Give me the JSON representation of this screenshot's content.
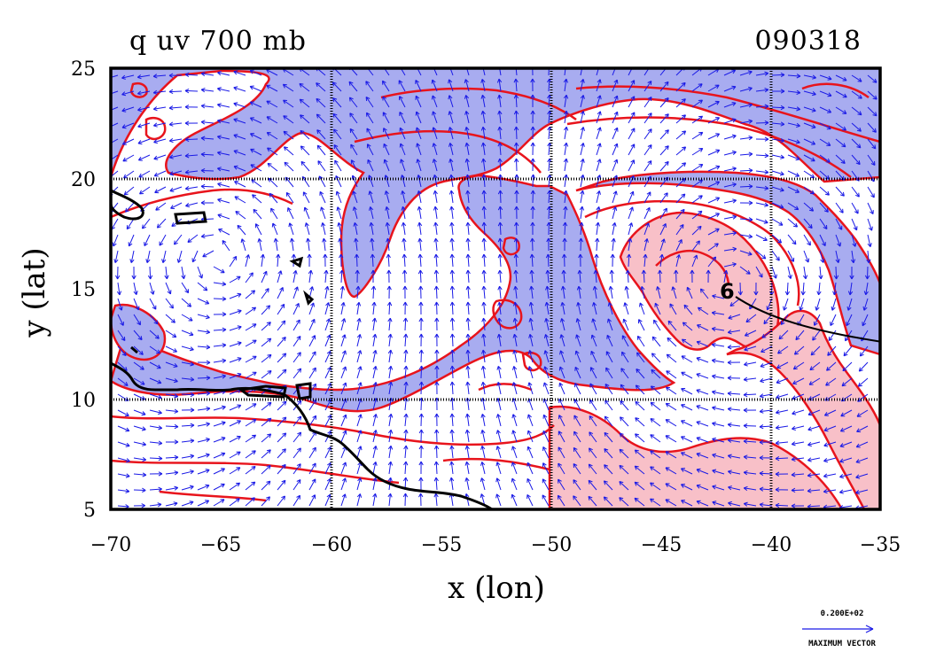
{
  "map": {
    "title_left": "q uv 700 mb",
    "title_right": "090318",
    "xlabel": "x (lon)",
    "ylabel": "y (lat)",
    "x_ticks": [
      "−70",
      "−65",
      "−60",
      "−55",
      "−50",
      "−45",
      "−40",
      "−35"
    ],
    "y_ticks": [
      "25",
      "20",
      "15",
      "10",
      "5"
    ],
    "lon_range": [
      -70,
      -35
    ],
    "lat_range": [
      5,
      25
    ],
    "grid_lons": [
      -60,
      -50,
      -40
    ],
    "grid_lats": [
      20,
      10
    ],
    "reference_vector": {
      "magnitude": "0.200E+02",
      "label": "MAXIMUM VECTOR"
    },
    "colors": {
      "dry_fill": "#a8acf0",
      "moist_fill": "#f8c0c8",
      "contour": "#e8141c",
      "vector": "#1a1ae6",
      "coast": "#000000"
    }
  }
}
